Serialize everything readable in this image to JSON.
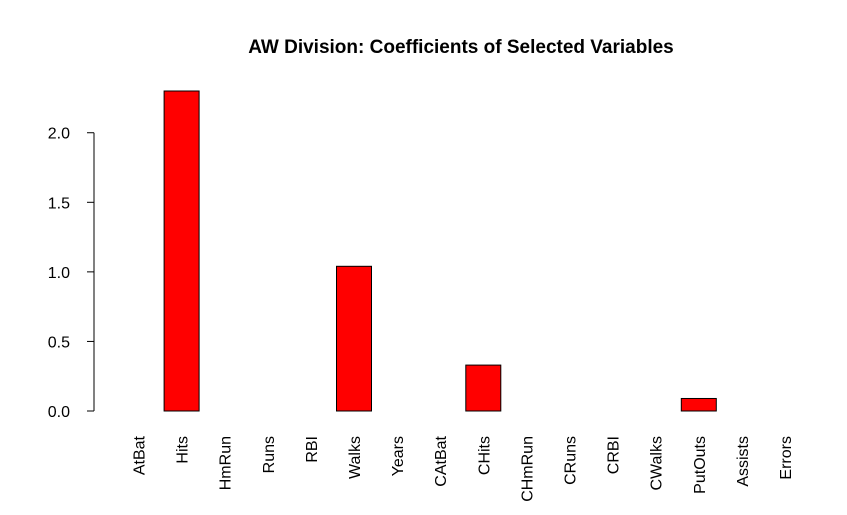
{
  "chart_data": {
    "type": "bar",
    "title": "AW Division: Coefficients of Selected Variables",
    "xlabel": "",
    "ylabel": "",
    "categories": [
      "AtBat",
      "Hits",
      "HmRun",
      "Runs",
      "RBI",
      "Walks",
      "Years",
      "CAtBat",
      "CHits",
      "CHmRun",
      "CRuns",
      "CRBI",
      "CWalks",
      "PutOuts",
      "Assists",
      "Errors"
    ],
    "values": [
      0,
      2.3,
      0,
      0,
      0,
      1.04,
      0,
      0,
      0.33,
      0,
      0,
      0,
      0,
      0.09,
      0,
      0
    ],
    "yticks": [
      "0.0",
      "0.5",
      "1.0",
      "1.5",
      "2.0"
    ],
    "ytick_values": [
      0,
      0.5,
      1.0,
      1.5,
      2.0
    ],
    "ylim": [
      0,
      2.3
    ],
    "bar_color": "#ff0000",
    "grid": false
  }
}
